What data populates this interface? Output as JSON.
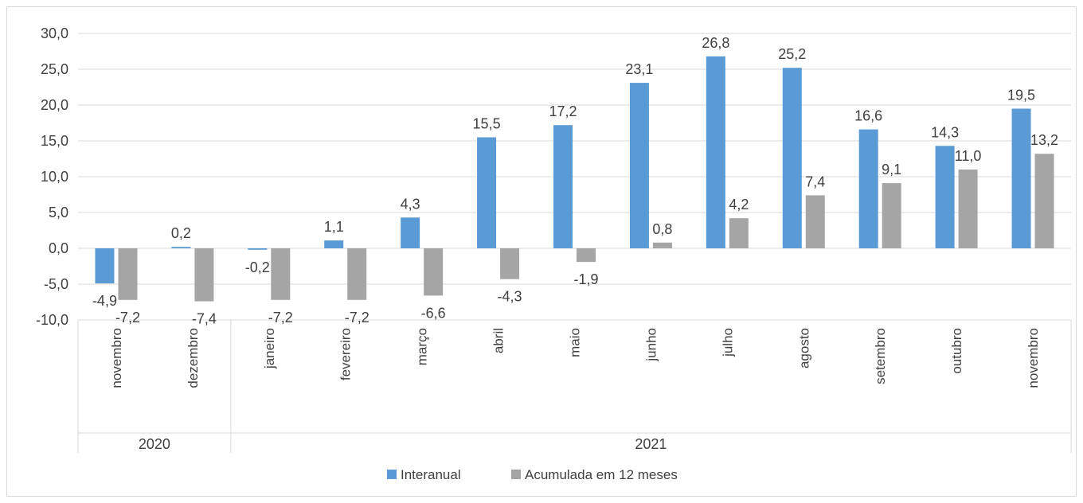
{
  "chart_data": {
    "type": "bar",
    "groups": [
      {
        "label": "2020",
        "categories": [
          "novembro",
          "dezembro"
        ]
      },
      {
        "label": "2021",
        "categories": [
          "janeiro",
          "fevereiro",
          "março",
          "abril",
          "maio",
          "junho",
          "julho",
          "agosto",
          "setembro",
          "outubro",
          "novembro"
        ]
      }
    ],
    "categories": [
      "novembro",
      "dezembro",
      "janeiro",
      "fevereiro",
      "março",
      "abril",
      "maio",
      "junho",
      "julho",
      "agosto",
      "setembro",
      "outubro",
      "novembro"
    ],
    "series": [
      {
        "name": "Interanual",
        "color": "#5b9bd5",
        "values": [
          -4.9,
          0.2,
          -0.2,
          1.1,
          4.3,
          15.5,
          17.2,
          23.1,
          26.8,
          25.2,
          16.6,
          14.3,
          19.5
        ],
        "labels": [
          "-4,9",
          "0,2",
          "-0,2",
          "1,1",
          "4,3",
          "15,5",
          "17,2",
          "23,1",
          "26,8",
          "25,2",
          "16,6",
          "14,3",
          "19,5"
        ]
      },
      {
        "name": "Acumulada em 12 meses",
        "color": "#a5a5a5",
        "values": [
          -7.2,
          -7.4,
          -7.2,
          -7.2,
          -6.6,
          -4.3,
          -1.9,
          0.8,
          4.2,
          7.4,
          9.1,
          11.0,
          13.2
        ],
        "labels": [
          "-7,2",
          "-7,4",
          "-7,2",
          "-7,2",
          "-6,6",
          "-4,3",
          "-1,9",
          "0,8",
          "4,2",
          "7,4",
          "9,1",
          "11,0",
          "13,2"
        ]
      }
    ],
    "ylim": [
      -10,
      30
    ],
    "yticks": [
      -10,
      -5,
      0,
      5,
      10,
      15,
      20,
      25,
      30
    ],
    "ytick_labels": [
      "-10,0",
      "-5,0",
      "0,0",
      "5,0",
      "10,0",
      "15,0",
      "20,0",
      "25,0",
      "30,0"
    ],
    "grid": true,
    "legend_position": "bottom",
    "title": "",
    "xlabel": "",
    "ylabel": ""
  }
}
